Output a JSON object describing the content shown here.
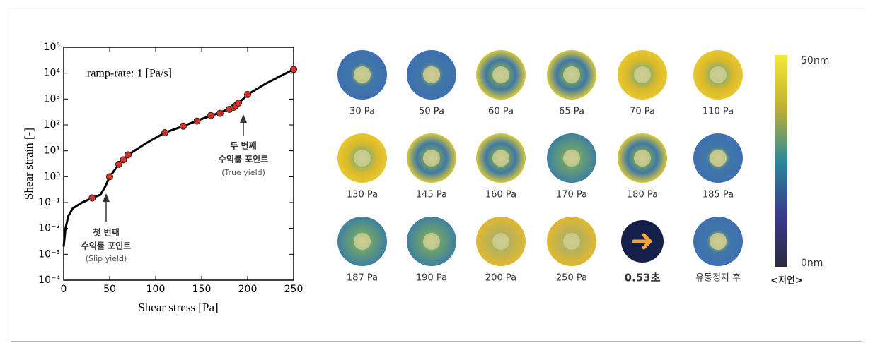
{
  "chart_data": {
    "type": "scatter",
    "xlabel": "Shear stress [Pa]",
    "ylabel": "Shear strain [-]",
    "xlim": [
      0,
      250
    ],
    "xticks": [
      0,
      50,
      100,
      150,
      200,
      250
    ],
    "ylim": [
      0.0001,
      100000
    ],
    "log_y": true,
    "yticks": [
      {
        "value": 0.0001,
        "label": "10⁻⁴"
      },
      {
        "value": 0.001,
        "label": "10⁻³"
      },
      {
        "value": 0.01,
        "label": "10⁻²"
      },
      {
        "value": 0.1,
        "label": "10⁻¹"
      },
      {
        "value": 1,
        "label": "10⁰"
      },
      {
        "value": 10,
        "label": "10¹"
      },
      {
        "value": 100,
        "label": "10²"
      },
      {
        "value": 1000,
        "label": "10³"
      },
      {
        "value": 10000,
        "label": "10⁴"
      },
      {
        "value": 100000,
        "label": "10⁵"
      }
    ],
    "annotations": [
      "ramp-rate: 1 [Pa/s]",
      "두 번째",
      "수익률 포인트",
      "(True yield)",
      "첫 번째",
      "수익률 포인트",
      "(Slip yield)"
    ],
    "series": [
      {
        "type": "line",
        "color": "#000000",
        "x": [
          0,
          2,
          5,
          10,
          20,
          31,
          40,
          45,
          50,
          60,
          70,
          90,
          110,
          130,
          150,
          170,
          185,
          195,
          200,
          220,
          250
        ],
        "values": [
          0.002,
          0.01,
          0.03,
          0.06,
          0.1,
          0.15,
          0.2,
          0.4,
          1,
          3,
          7,
          20,
          50,
          90,
          170,
          300,
          500,
          1000,
          1500,
          4000,
          14000
        ]
      },
      {
        "type": "scatter",
        "color": "#d93025",
        "x": [
          31,
          50,
          60,
          65,
          70,
          110,
          130,
          145,
          160,
          170,
          180,
          185,
          187,
          190,
          200,
          250
        ],
        "values": [
          0.15,
          1,
          3,
          4.5,
          7,
          50,
          90,
          140,
          230,
          280,
          400,
          480,
          550,
          700,
          1500,
          14000
        ]
      }
    ]
  },
  "panels": [
    "30 Pa",
    "50 Pa",
    "60 Pa",
    "65 Pa",
    "70 Pa",
    "110 Pa",
    "130 Pa",
    "145 Pa",
    "160 Pa",
    "170 Pa",
    "180 Pa",
    "185 Pa",
    "187 Pa",
    "190 Pa",
    "200 Pa",
    "250 Pa",
    "0.53초",
    "유동정지 후"
  ],
  "colorbar": {
    "max_label": "50nm",
    "min_label": "0nm",
    "title": "<지연>"
  }
}
